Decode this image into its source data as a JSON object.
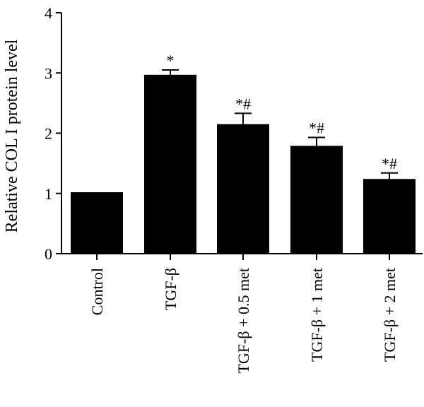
{
  "chart_data": {
    "type": "bar",
    "title": "",
    "xlabel": "",
    "ylabel": "Relative COL I protein level",
    "ylim": [
      0,
      4
    ],
    "yticks": [
      "0",
      "1",
      "2",
      "3",
      "4"
    ],
    "grid": false,
    "categories": [
      "Control",
      "TGF-β",
      "TGF-β + 0.5 met",
      "TGF-β + 1 met",
      "TGF-β + 2 met"
    ],
    "values": [
      1.02,
      2.97,
      2.15,
      1.79,
      1.24
    ],
    "errors": [
      0.0,
      0.08,
      0.18,
      0.14,
      0.1
    ],
    "annotations": [
      "",
      "*",
      "*#",
      "*#",
      "*#"
    ],
    "bar_color": "#000000"
  }
}
